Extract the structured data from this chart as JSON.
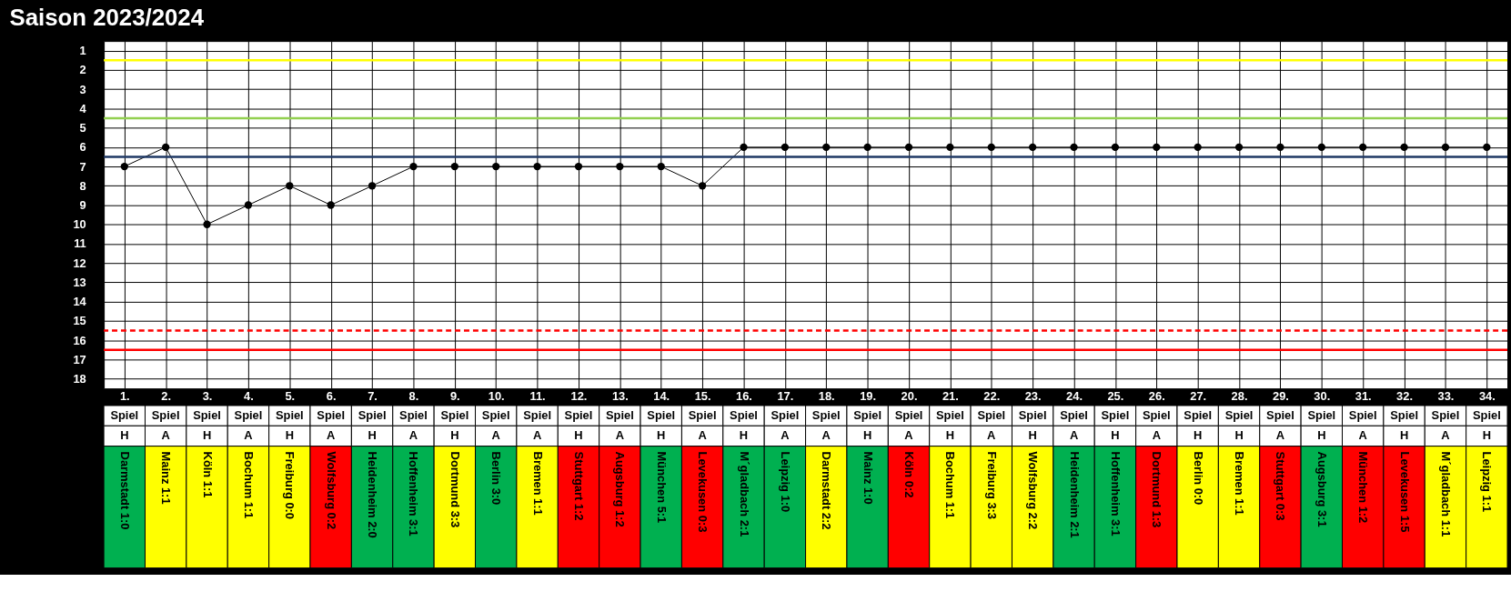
{
  "chart_data": [
    {
      "type": "line",
      "title": "Saison 2023/2024",
      "categories": [
        "1.",
        "2.",
        "3.",
        "4.",
        "5.",
        "6.",
        "7.",
        "8.",
        "9.",
        "10.",
        "11.",
        "12.",
        "13.",
        "14.",
        "15.",
        "16.",
        "17.",
        "18.",
        "19.",
        "20.",
        "21.",
        "22.",
        "23.",
        "24.",
        "25.",
        "26.",
        "27.",
        "28.",
        "29.",
        "30.",
        "31.",
        "32.",
        "33.",
        "34."
      ],
      "series": [
        {
          "color": "#000000",
          "values": [
            7,
            6,
            10,
            9,
            8,
            9,
            8,
            7,
            7,
            7,
            7,
            7,
            7,
            7,
            8,
            6,
            6,
            6,
            6,
            6,
            6,
            6,
            6,
            6,
            6,
            6,
            6,
            6,
            6,
            6,
            6,
            6,
            6,
            6
          ]
        }
      ],
      "ylim": [
        18.5,
        0.5
      ],
      "yticks": [
        1,
        2,
        3,
        4,
        5,
        6,
        7,
        8,
        9,
        10,
        11,
        12,
        13,
        14,
        15,
        16,
        17,
        18
      ],
      "grid": true,
      "marker": "circle",
      "line_style": "solid",
      "ref_lines": [
        {
          "axis": "y",
          "value": 1.5,
          "color": "#ffff00",
          "line_style": "solid"
        },
        {
          "axis": "y",
          "value": 4.5,
          "color": "#92d050",
          "line_style": "solid"
        },
        {
          "axis": "y",
          "value": 6.5,
          "color": "#1f3864",
          "line_style": "solid"
        },
        {
          "axis": "y",
          "value": 15.5,
          "color": "#ff0000",
          "line_style": "dashed"
        },
        {
          "axis": "y",
          "value": 16.5,
          "color": "#ff0000",
          "line_style": "solid"
        }
      ]
    },
    {
      "type": "other",
      "annotations": [
        "Spiel",
        "Spiel",
        "Spiel",
        "Spiel",
        "Spiel",
        "Spiel",
        "Spiel",
        "Spiel",
        "Spiel",
        "Spiel",
        "Spiel",
        "Spiel",
        "Spiel",
        "Spiel",
        "Spiel",
        "Spiel",
        "Spiel",
        "Spiel",
        "Spiel",
        "Spiel",
        "Spiel",
        "Spiel",
        "Spiel",
        "Spiel",
        "Spiel",
        "Spiel",
        "Spiel",
        "Spiel",
        "Spiel",
        "Spiel",
        "Spiel",
        "Spiel",
        "Spiel",
        "Spiel",
        "H",
        "A",
        "H",
        "A",
        "H",
        "A",
        "H",
        "A",
        "H",
        "A",
        "A",
        "H",
        "A",
        "H",
        "A",
        "H",
        "A",
        "A",
        "H",
        "A",
        "H",
        "A",
        "H",
        "A",
        "H",
        "A",
        "H",
        "H",
        "A",
        "H",
        "A",
        "H",
        "A",
        "H"
      ],
      "categories": [
        "Darmstadt 1:0",
        "Mainz 1:1",
        "Köln 1:1",
        "Bochum 1:1",
        "Freiburg 0:0",
        "Wolfsburg 0:2",
        "Heidenheim 2:0",
        "Hoffenheim 3:1",
        "Dortmund 3:3",
        "Berlin 3:0",
        "Bremen 1:1",
        "Stuttgart 1:2",
        "Augsburg 1:2",
        "München 5:1",
        "Levekusen 0:3",
        "M´gladbach 2:1",
        "Leipzig 1:0",
        "Darmstadt 2:2",
        "Mainz 1:0",
        "Köln 0:2",
        "Bochum 1:1",
        "Freiburg 3:3",
        "Wolfsburg 2:2",
        "Heidenheim 2:1",
        "Hoffenheim 3:1",
        "Dortmund 1:3",
        "Berlin 0:0",
        "Bremen 1:1",
        "Stuttgart 0:3",
        "Augsburg 3:1",
        "München 1:2",
        "Levekusen 1:5",
        "M´gladbach 1:1",
        "Leipzig 1:1"
      ],
      "colors": [
        "#00b050",
        "#ffff00",
        "#ffff00",
        "#ffff00",
        "#ffff00",
        "#ff0000",
        "#00b050",
        "#00b050",
        "#ffff00",
        "#00b050",
        "#ffff00",
        "#ff0000",
        "#ff0000",
        "#00b050",
        "#ff0000",
        "#00b050",
        "#00b050",
        "#ffff00",
        "#00b050",
        "#ff0000",
        "#ffff00",
        "#ffff00",
        "#ffff00",
        "#00b050",
        "#00b050",
        "#ff0000",
        "#ffff00",
        "#ffff00",
        "#ff0000",
        "#00b050",
        "#ff0000",
        "#ff0000",
        "#ffff00",
        "#ffff00"
      ]
    }
  ]
}
